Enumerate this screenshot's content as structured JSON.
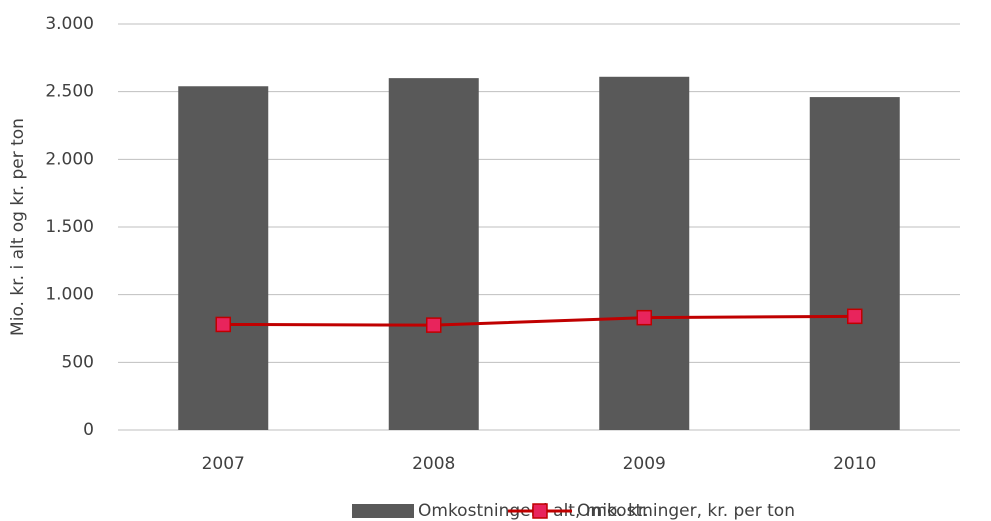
{
  "chart_data": {
    "type": "combo",
    "y_label": "Mio. kr. i alt og kr. per ton",
    "categories": [
      "2007",
      "2008",
      "2009",
      "2010"
    ],
    "series": [
      {
        "name": "Omkostninger i alt, mio. kr.",
        "type": "bar",
        "color": "#595959",
        "values": [
          2540,
          2600,
          2610,
          2460
        ]
      },
      {
        "name": "Omkostninger, kr. per ton",
        "type": "line",
        "color": "#c00000",
        "marker_color": "#e8245c",
        "values": [
          780,
          775,
          830,
          840
        ]
      }
    ],
    "ylim": [
      0,
      3000
    ],
    "yticks": [
      0,
      500,
      {
        "value": 1000,
        "label": "1.000"
      },
      {
        "value": 1500,
        "label": "1.500"
      },
      {
        "value": 2000,
        "label": "2.000"
      },
      {
        "value": 2500,
        "label": "2.500"
      },
      {
        "value": 3000,
        "label": "3.000"
      }
    ],
    "grid": true,
    "legend": "bottom"
  }
}
